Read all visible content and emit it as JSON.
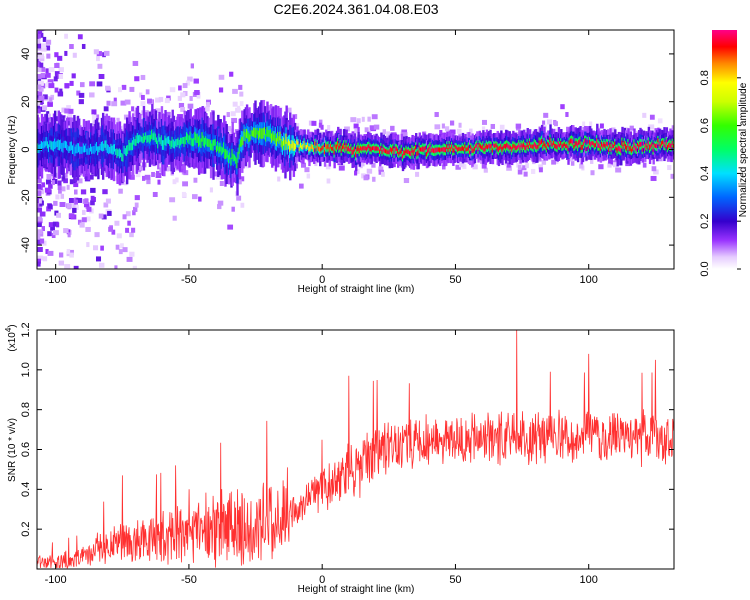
{
  "title": "C2E6.2024.361.04.08.E03",
  "chart_data": [
    {
      "type": "heatmap",
      "xlabel": "Height of straight line (km)",
      "ylabel": "Frequency (Hz)",
      "xlim": [
        -107,
        132
      ],
      "ylim": [
        -50,
        50
      ],
      "xticks": [
        -100,
        -50,
        0,
        50,
        100
      ],
      "xtick_labels": [
        "-100",
        "-50",
        "0",
        "50",
        "100"
      ],
      "yticks": [
        -40,
        -20,
        0,
        20,
        40
      ],
      "ytick_labels": [
        "-40",
        "-20",
        "0",
        "20",
        "40"
      ],
      "colorbar": {
        "label": "Normalized spectral amplitude",
        "range": [
          0,
          1
        ],
        "ticks": [
          0.0,
          0.2,
          0.4,
          0.6,
          0.8
        ],
        "tick_labels": [
          "0.0",
          "0.2",
          "0.4",
          "0.6",
          "0.8"
        ]
      },
      "ridge": {
        "x": [
          -107,
          -100,
          -90,
          -80,
          -75,
          -70,
          -65,
          -60,
          -55,
          -50,
          -45,
          -40,
          -35,
          -32,
          -30,
          -25,
          -20,
          -15,
          -10,
          -5,
          0,
          10,
          20,
          30,
          40,
          50,
          60,
          70,
          80,
          90,
          100,
          110,
          120,
          125,
          132
        ],
        "y": [
          1,
          2,
          0,
          1,
          -2,
          3,
          6,
          3,
          2,
          5,
          4,
          2,
          -2,
          -5,
          5,
          7,
          6,
          3,
          2,
          1,
          1,
          0,
          0,
          -1,
          0,
          0,
          1,
          1,
          2,
          2,
          2,
          1,
          1,
          2,
          2
        ],
        "amplitude": [
          0.4,
          0.4,
          0.35,
          0.4,
          0.45,
          0.45,
          0.5,
          0.45,
          0.45,
          0.5,
          0.55,
          0.55,
          0.55,
          0.55,
          0.6,
          0.6,
          0.6,
          0.65,
          0.75,
          0.8,
          0.9,
          0.95,
          0.95,
          0.95,
          0.95,
          0.95,
          0.95,
          0.95,
          0.95,
          0.95,
          0.95,
          0.95,
          0.95,
          0.95,
          0.95
        ]
      }
    },
    {
      "type": "line",
      "xlabel": "Height of straight line (km)",
      "ylabel": "SNR (10 * v/v)",
      "scale_label": "(x10",
      "scale_exponent": "4",
      "xlim": [
        -107,
        132
      ],
      "ylim": [
        0,
        1.2
      ],
      "xticks": [
        -100,
        -50,
        0,
        50,
        100
      ],
      "xtick_labels": [
        "-100",
        "-50",
        "0",
        "50",
        "100"
      ],
      "yticks": [
        0.2,
        0.4,
        0.6,
        0.8,
        1.0,
        1.2
      ],
      "ytick_labels": [
        "0.2",
        "0.4",
        "0.6",
        "0.8",
        "1.0",
        "1.2"
      ],
      "color": "#ff3030",
      "series": [
        {
          "x": [
            -107,
            -100,
            -90,
            -85,
            -80,
            -70,
            -60,
            -50,
            -40,
            -30,
            -20,
            -15,
            -10,
            -5,
            0,
            5,
            10,
            15,
            20,
            30,
            40,
            50,
            60,
            70,
            80,
            90,
            100,
            110,
            120,
            132
          ],
          "values": [
            0.03,
            0.04,
            0.05,
            0.09,
            0.12,
            0.14,
            0.16,
            0.18,
            0.2,
            0.22,
            0.25,
            0.28,
            0.3,
            0.36,
            0.4,
            0.42,
            0.47,
            0.54,
            0.6,
            0.63,
            0.64,
            0.65,
            0.66,
            0.67,
            0.66,
            0.67,
            0.66,
            0.66,
            0.66,
            0.64
          ],
          "noise": [
            0.03,
            0.04,
            0.05,
            0.08,
            0.1,
            0.12,
            0.13,
            0.15,
            0.17,
            0.18,
            0.2,
            0.2,
            0.1,
            0.08,
            0.1,
            0.12,
            0.15,
            0.15,
            0.14,
            0.12,
            0.12,
            0.12,
            0.12,
            0.13,
            0.13,
            0.13,
            0.13,
            0.13,
            0.13,
            0.14
          ],
          "peaks": [
            [
              -50,
              0.4
            ],
            [
              -13,
              0.51
            ],
            [
              10,
              0.97
            ],
            [
              73,
              1.2
            ],
            [
              100,
              1.08
            ],
            [
              125,
              1.05
            ],
            [
              -75,
              0.47
            ]
          ]
        }
      ]
    }
  ]
}
